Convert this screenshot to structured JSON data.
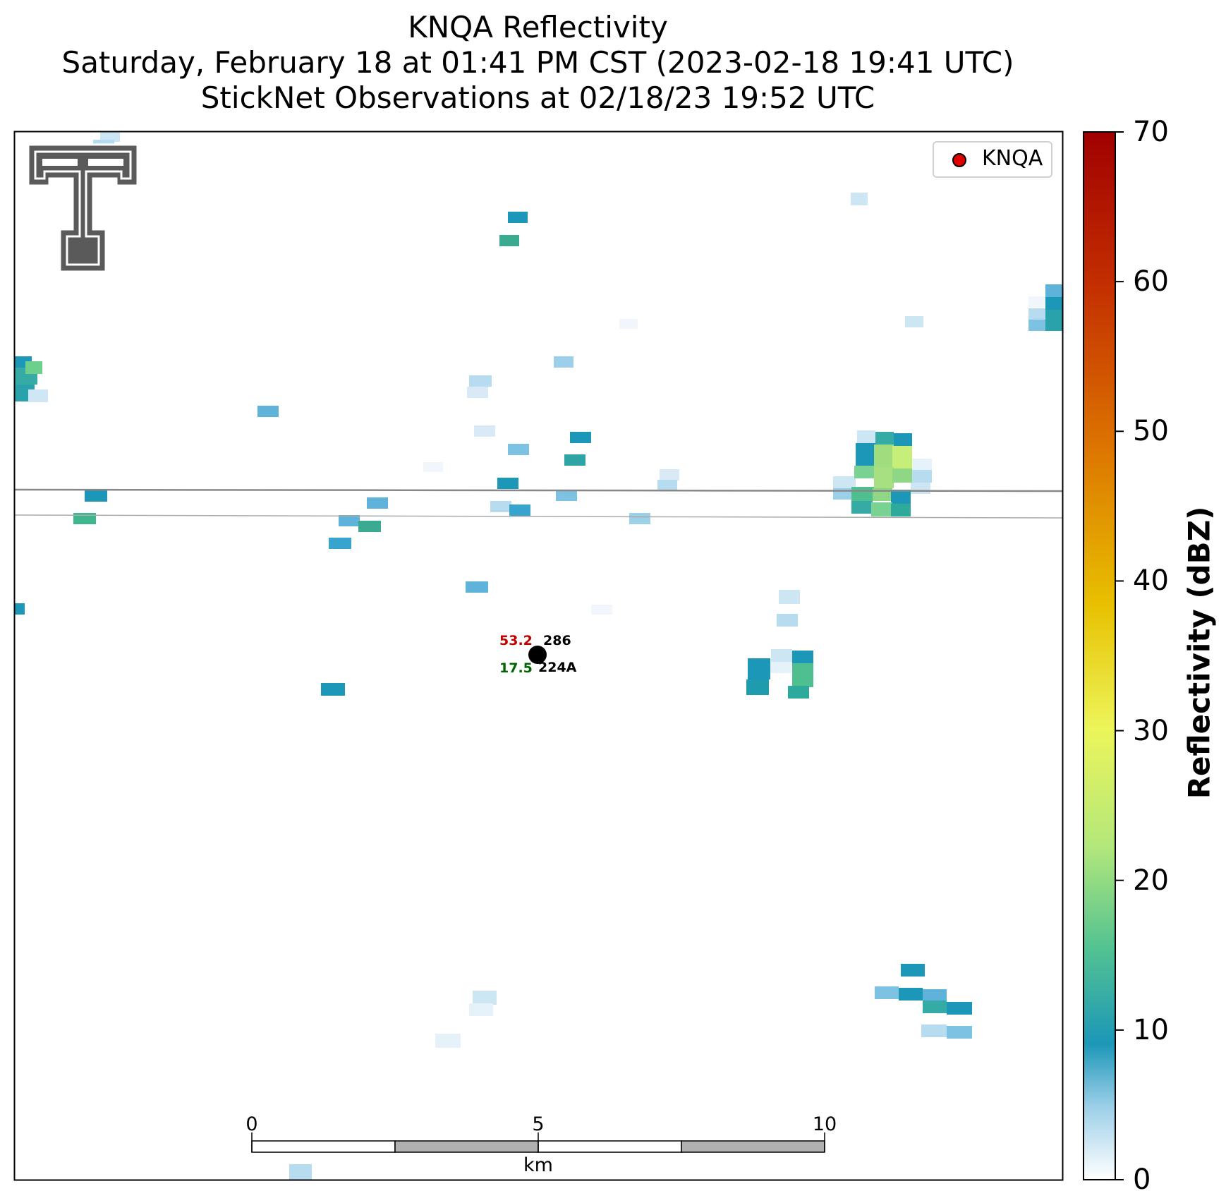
{
  "title": {
    "line1": "KNQA Reflectivity",
    "line2": "Saturday, February 18 at 01:41 PM CST (2023-02-18 19:41 UTC)",
    "line3": "StickNet Observations at 02/18/23 19:52 UTC"
  },
  "legend": {
    "label": "KNQA",
    "marker_color": "#e00000"
  },
  "colorbar": {
    "title": "Reflectivity (dBZ)",
    "ticks": [
      "0",
      "10",
      "20",
      "30",
      "40",
      "50",
      "60",
      "70"
    ],
    "range": [
      0,
      70
    ]
  },
  "scale_bar": {
    "ticks": [
      "0",
      "5",
      "10"
    ],
    "unit": "km"
  },
  "station": {
    "temperature": "53.2",
    "dewpoint": "17.5",
    "pressure": "286",
    "id": "224A",
    "temperature_color": "#c00000",
    "dewpoint_color": "#006400"
  },
  "logo": {
    "name": "Texas Tech Double T"
  }
}
